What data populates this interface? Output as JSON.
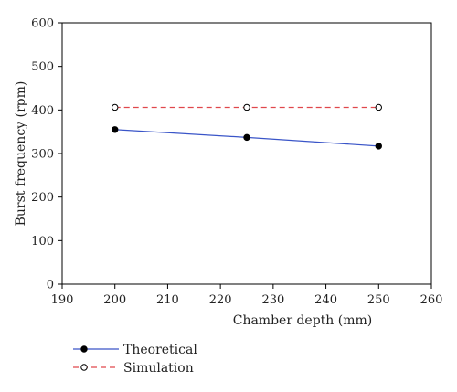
{
  "chart_data": {
    "type": "line",
    "title": "",
    "xlabel": "Chamber depth (mm)",
    "ylabel": "Burst frequency (rpm)",
    "xlim": [
      190,
      260
    ],
    "ylim": [
      0,
      600
    ],
    "x_ticks": [
      "190",
      "200",
      "210",
      "220",
      "230",
      "240",
      "250",
      "260"
    ],
    "y_ticks": [
      "0",
      "100",
      "200",
      "300",
      "400",
      "500",
      "600"
    ],
    "grid": false,
    "legend_position": "bottom-left, below plot",
    "series": [
      {
        "name": "Theoretical",
        "x": [
          200,
          225,
          250
        ],
        "y": [
          355,
          337,
          317
        ],
        "color": "#3a55c8",
        "line_style": "solid",
        "marker": "filled-circle"
      },
      {
        "name": "Simulation",
        "x": [
          200,
          225,
          250
        ],
        "y": [
          406,
          406,
          406
        ],
        "color": "#e0474c",
        "line_style": "dashed",
        "marker": "open-circle"
      }
    ]
  }
}
